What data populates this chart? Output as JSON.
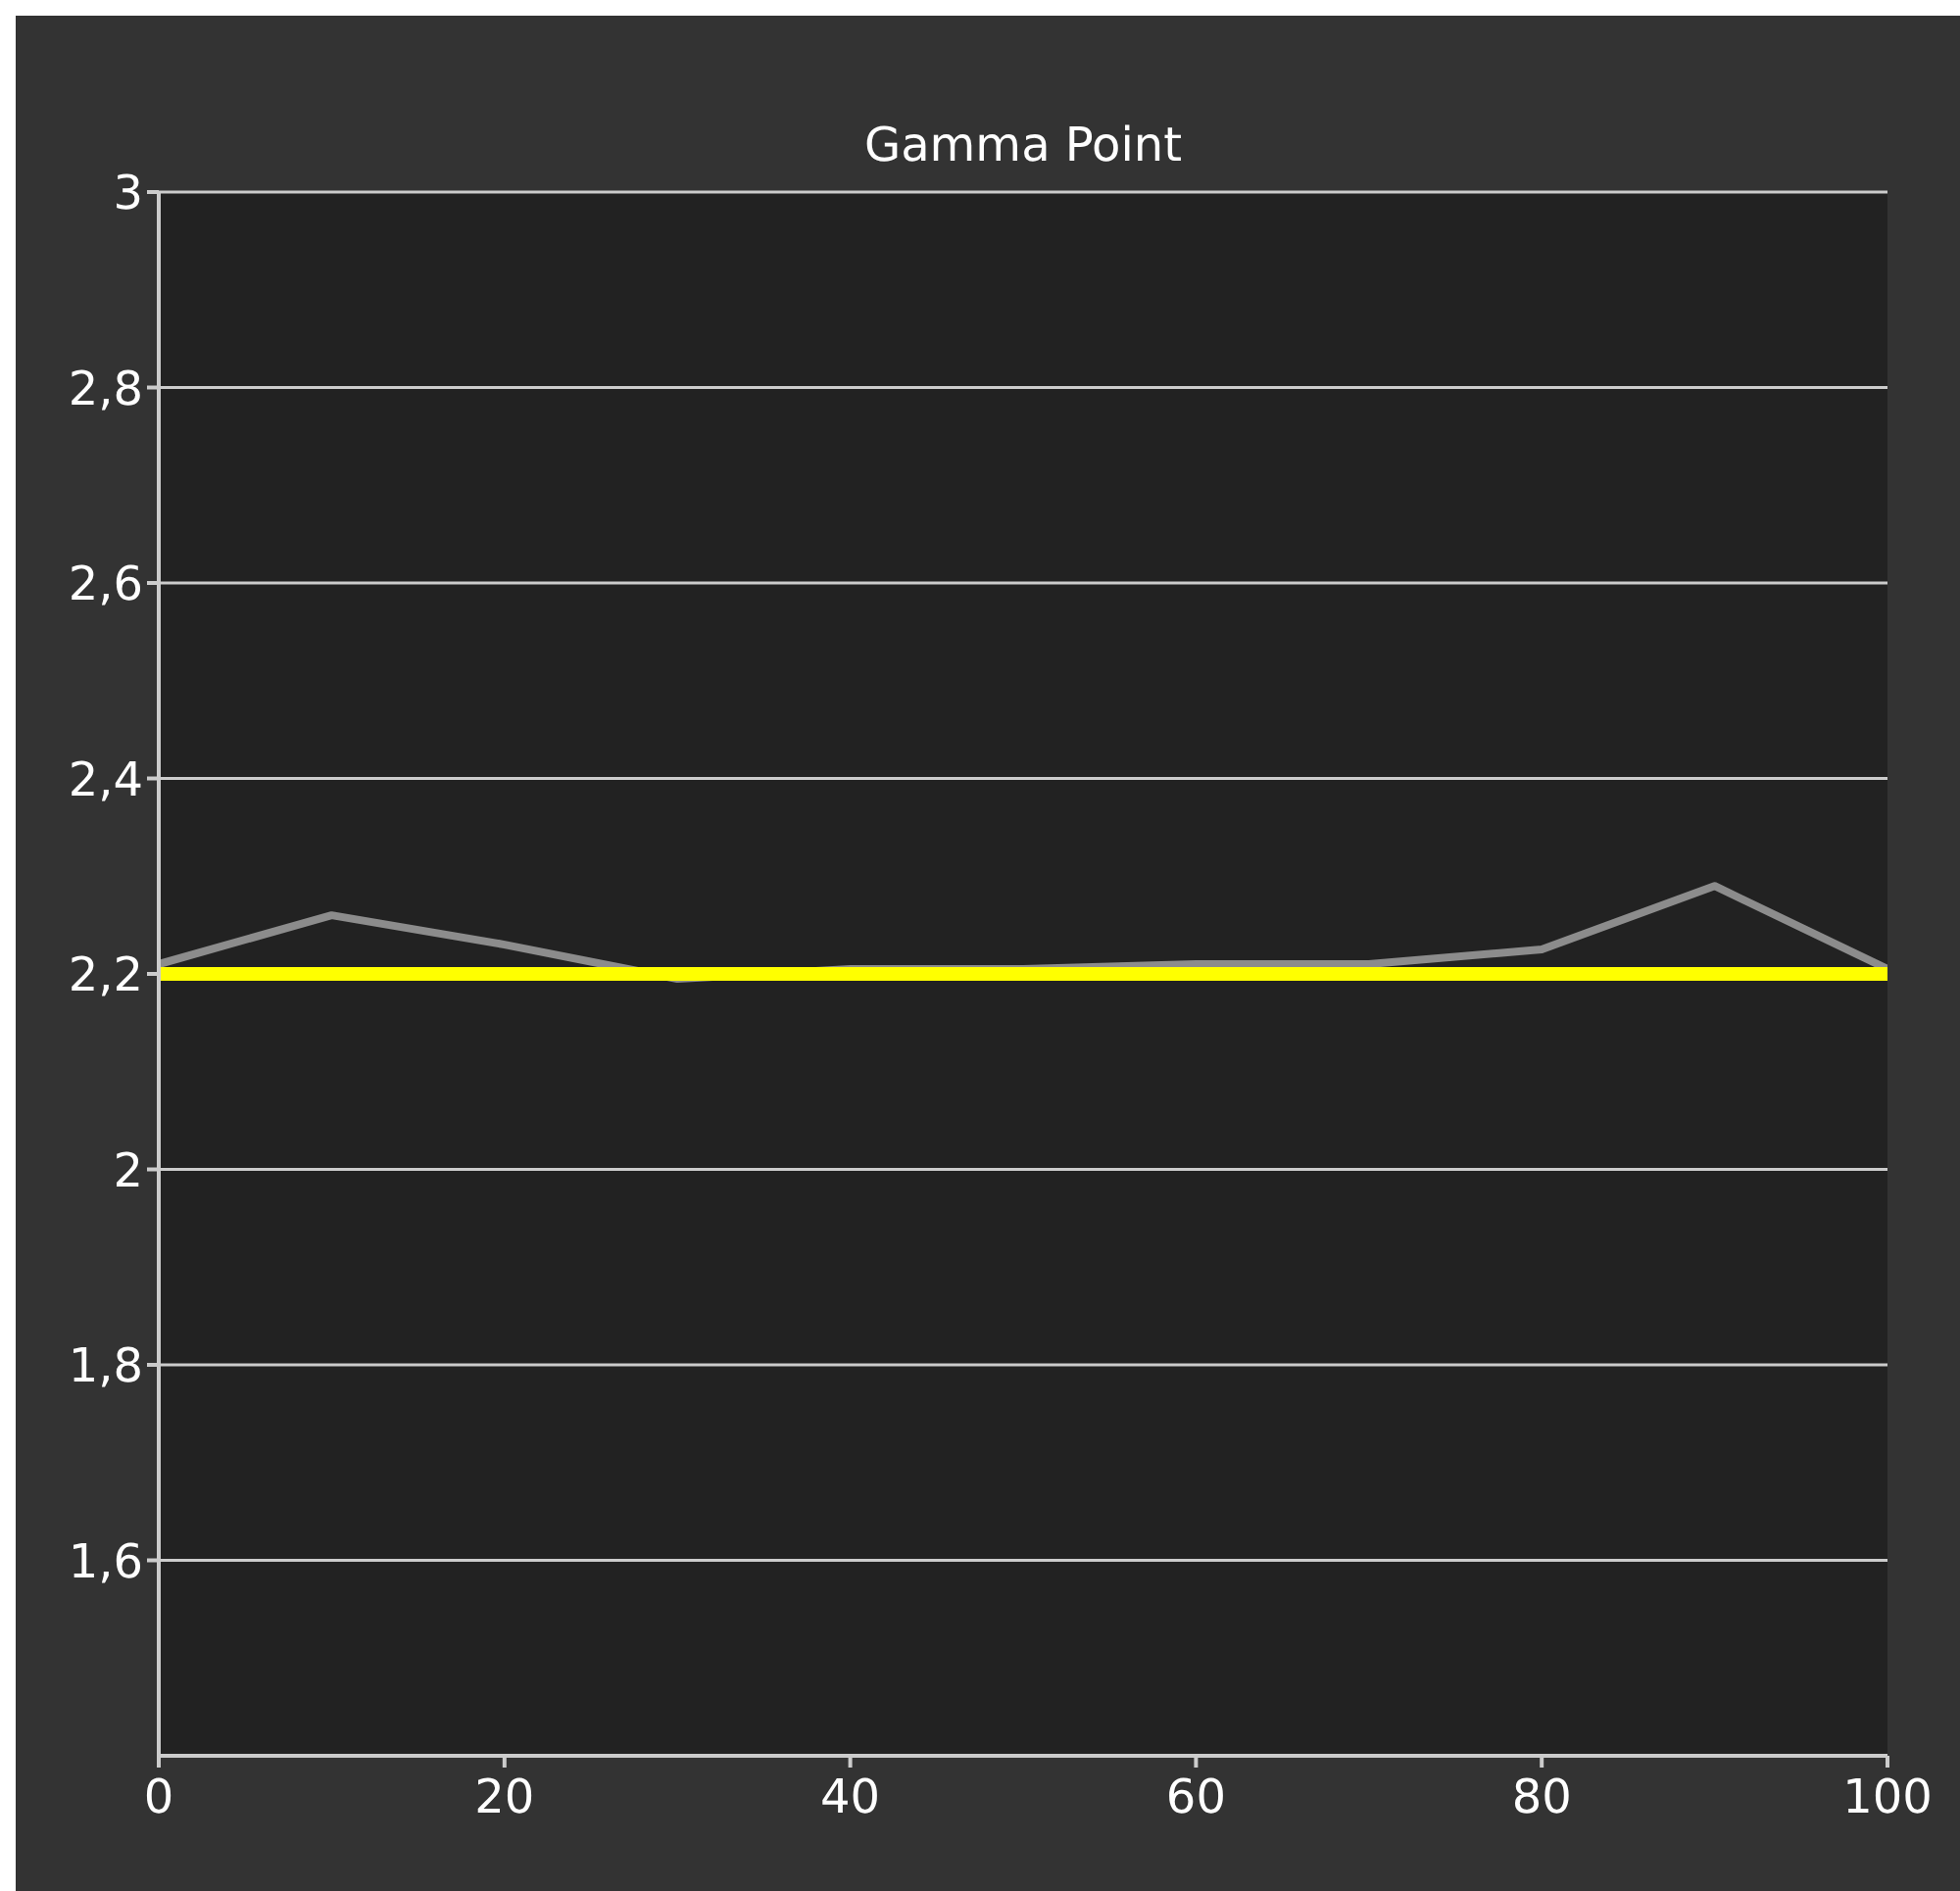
{
  "chart_data": {
    "type": "line",
    "title": "Gamma Point",
    "x": [
      0,
      10,
      20,
      30,
      40,
      50,
      60,
      70,
      80,
      90,
      100
    ],
    "series": [
      {
        "color": "#8c8c8c",
        "values": [
          2.21,
          2.26,
          2.23,
          2.195,
          2.205,
          2.205,
          2.21,
          2.21,
          2.225,
          2.29,
          2.205
        ]
      },
      {
        "color": "#ffff00",
        "values": [
          2.2,
          2.2,
          2.2,
          2.2,
          2.2,
          2.2,
          2.2,
          2.2,
          2.2,
          2.2,
          2.2
        ]
      }
    ],
    "xlim": [
      0,
      100
    ],
    "xticks": [
      0,
      20,
      40,
      60,
      80,
      100
    ],
    "ylim": [
      1.4,
      3
    ],
    "yticks": [
      {
        "value": 1.6,
        "label": "1,6"
      },
      {
        "value": 1.8,
        "label": "1,8"
      },
      2,
      {
        "value": 2.2,
        "label": "2,2"
      },
      {
        "value": 2.4,
        "label": "2,4"
      },
      {
        "value": 2.6,
        "label": "2,6"
      },
      {
        "value": 2.8,
        "label": "2,8"
      },
      3
    ],
    "grid": "y",
    "marker": "none",
    "line_style": "solid"
  }
}
